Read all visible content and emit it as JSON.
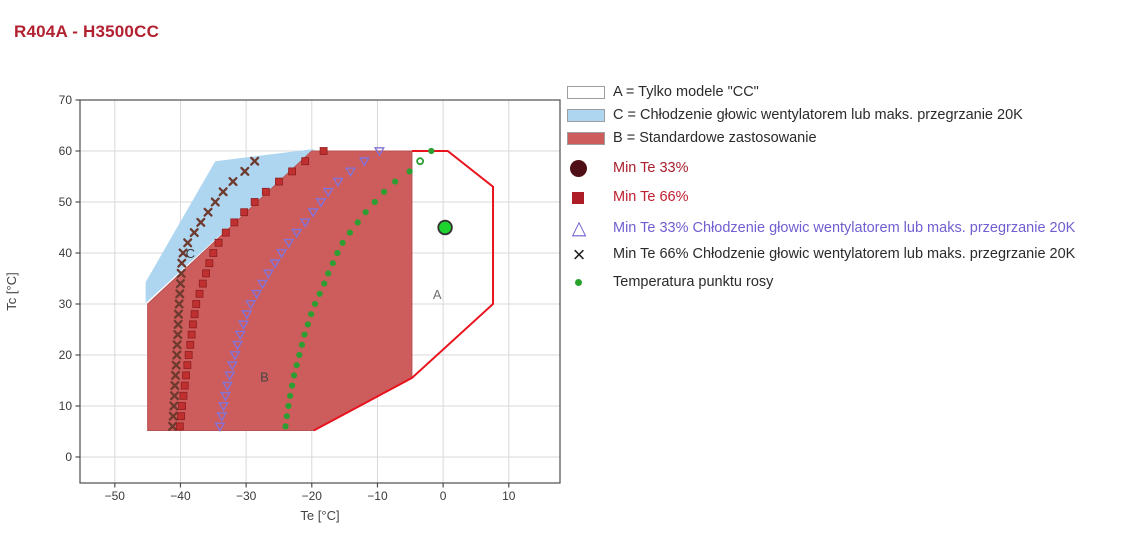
{
  "title": "R404A - H3500CC",
  "legend": {
    "items": [
      {
        "type": "box",
        "swatch_color": "#ffffff",
        "label": "A = Tylko modele \"CC\"",
        "label_color": "#2b2b2b"
      },
      {
        "type": "box",
        "swatch_color": "#aed6f1",
        "label": "C = Chłodzenie głowic wentylatorem lub maks. przegrzanie 20K",
        "label_color": "#2b2b2b"
      },
      {
        "type": "box",
        "swatch_color": "#cd5c5c",
        "label": "B = Standardowe zastosowanie",
        "label_color": "#2b2b2b"
      },
      {
        "type": "circle",
        "swatch_color": "#4e1016",
        "label": "Min Te 33%",
        "label_color": "#a8212e"
      },
      {
        "type": "square",
        "swatch_color": "#ad1d28",
        "label": "Min Te 66%",
        "label_color": "#bf2030"
      },
      {
        "type": "triangle",
        "swatch_color": "#6f5fd0",
        "label": "Min Te 33% Chłodzenie głowic wentylatorem lub maks. przegrzanie 20K",
        "label_color": "#6f5fd0"
      },
      {
        "type": "x",
        "swatch_color": "#222222",
        "label": "Min Te 66% Chłodzenie głowic wentylatorem lub maks. przegrzanie 20K",
        "label_color": "#2b2b2b"
      },
      {
        "type": "dot",
        "swatch_color": "#27a22b",
        "label": "Temperatura punktu rosy",
        "label_color": "#2b2b2b"
      }
    ]
  },
  "chart_data": {
    "type": "scatter",
    "title": "R404A - H3500CC",
    "xlabel": "Te [°C]",
    "ylabel": "Tc [°C]",
    "xlim": [
      -55.3,
      17.8
    ],
    "ylim": [
      -5.1,
      70
    ],
    "xticks": [
      -50,
      -40,
      -30,
      -20,
      -10,
      0,
      10
    ],
    "yticks": [
      0,
      10,
      20,
      30,
      40,
      50,
      60,
      70
    ],
    "grid": true,
    "legend_position": "right",
    "regions": [
      {
        "name": "C = Chłodzenie głowic wentylatorem lub maks. przegrzanie 20K",
        "fill": "#aed6f1",
        "points": [
          [
            -45.3,
            30.2
          ],
          [
            -45.3,
            34.3
          ],
          [
            -34.7,
            58
          ],
          [
            -19.6,
            60.4
          ]
        ]
      },
      {
        "name": "B = Standardowe zastosowanie",
        "fill": "#cd5c5c",
        "stroke": "#b95252",
        "points": [
          [
            -45,
            5.2
          ],
          [
            -45,
            30
          ],
          [
            -20,
            60
          ],
          [
            -4.75,
            60
          ],
          [
            -4.75,
            15.5
          ],
          [
            -19.7,
            5.2
          ]
        ]
      }
    ],
    "envelope_a_outline": {
      "name": "A = Tylko modele \"CC\"",
      "stroke": "#e8131d",
      "points": [
        [
          -4.75,
          60
        ],
        [
          0.7,
          60
        ],
        [
          7.6,
          53
        ],
        [
          7.6,
          30
        ],
        [
          -4.75,
          15.5
        ],
        [
          -19.7,
          5.2
        ]
      ]
    },
    "series": [
      {
        "name": "Min Te 66% Chłodzenie głowic wentylatorem lub maks. przegrzanie 20K",
        "marker": "x",
        "color": "#6e3a2e",
        "points": [
          [
            -41.2,
            6
          ],
          [
            -41.1,
            8
          ],
          [
            -41.0,
            10
          ],
          [
            -40.9,
            12
          ],
          [
            -40.85,
            14
          ],
          [
            -40.75,
            16
          ],
          [
            -40.65,
            18
          ],
          [
            -40.55,
            20
          ],
          [
            -40.5,
            22
          ],
          [
            -40.4,
            24
          ],
          [
            -40.35,
            26
          ],
          [
            -40.3,
            28
          ],
          [
            -40.2,
            30
          ],
          [
            -40.1,
            32
          ],
          [
            -40.0,
            34
          ],
          [
            -39.9,
            36
          ],
          [
            -39.8,
            38
          ],
          [
            -39.6,
            40
          ],
          [
            -38.9,
            42
          ],
          [
            -37.9,
            44
          ],
          [
            -36.9,
            46
          ],
          [
            -35.8,
            48
          ],
          [
            -34.7,
            50
          ],
          [
            -33.5,
            52
          ],
          [
            -32.0,
            54
          ],
          [
            -30.2,
            56
          ],
          [
            -28.7,
            58
          ]
        ]
      },
      {
        "name": "Min Te 66%",
        "marker": "square",
        "color": "#c13030",
        "points": [
          [
            -40.1,
            6
          ],
          [
            -39.9,
            8
          ],
          [
            -39.75,
            10
          ],
          [
            -39.55,
            12
          ],
          [
            -39.35,
            14
          ],
          [
            -39.15,
            16
          ],
          [
            -38.95,
            18
          ],
          [
            -38.75,
            20
          ],
          [
            -38.5,
            22
          ],
          [
            -38.3,
            24
          ],
          [
            -38.1,
            26
          ],
          [
            -37.85,
            28
          ],
          [
            -37.6,
            30
          ],
          [
            -37.1,
            32
          ],
          [
            -36.6,
            34
          ],
          [
            -36.1,
            36
          ],
          [
            -35.6,
            38
          ],
          [
            -35.0,
            40
          ],
          [
            -34.2,
            42
          ],
          [
            -33.1,
            44
          ],
          [
            -31.8,
            46
          ],
          [
            -30.3,
            48
          ],
          [
            -28.7,
            50
          ],
          [
            -27.0,
            52
          ],
          [
            -25.0,
            54
          ],
          [
            -23.0,
            56
          ],
          [
            -21.0,
            58
          ],
          [
            -18.2,
            60
          ]
        ]
      },
      {
        "name": "Min Te 33% Chłodzenie głowic wentylatorem lub maks. przegrzanie 20K",
        "marker": "triangle-down",
        "color": "#8274da",
        "points": [
          [
            -34.0,
            6
          ],
          [
            -33.7,
            8
          ],
          [
            -33.45,
            10
          ],
          [
            -33.15,
            12
          ],
          [
            -32.85,
            14
          ],
          [
            -32.5,
            16
          ],
          [
            -32.1,
            18
          ],
          [
            -31.7,
            20
          ],
          [
            -31.3,
            22
          ],
          [
            -30.9,
            24
          ],
          [
            -30.4,
            26
          ],
          [
            -29.9,
            28
          ],
          [
            -29.3,
            30
          ],
          [
            -28.4,
            32
          ],
          [
            -27.5,
            34
          ],
          [
            -26.6,
            36
          ],
          [
            -25.6,
            38
          ],
          [
            -24.6,
            40
          ],
          [
            -23.5,
            42
          ],
          [
            -22.3,
            44
          ],
          [
            -21.0,
            46
          ],
          [
            -19.8,
            48
          ],
          [
            -18.6,
            50
          ],
          [
            -17.5,
            52
          ],
          [
            -16.0,
            54
          ],
          [
            -14.1,
            56
          ],
          [
            -12.0,
            58
          ],
          [
            -9.7,
            60
          ]
        ]
      },
      {
        "name": "Temperatura punktu rosy",
        "marker": "dot",
        "color": "#2f9e32",
        "points": [
          [
            -24.0,
            6
          ],
          [
            -23.8,
            8
          ],
          [
            -23.55,
            10
          ],
          [
            -23.3,
            12
          ],
          [
            -23.0,
            14
          ],
          [
            -22.7,
            16
          ],
          [
            -22.3,
            18
          ],
          [
            -21.9,
            20
          ],
          [
            -21.5,
            22
          ],
          [
            -21.1,
            24
          ],
          [
            -20.6,
            26
          ],
          [
            -20.1,
            28
          ],
          [
            -19.5,
            30
          ],
          [
            -18.8,
            32
          ],
          [
            -18.1,
            34
          ],
          [
            -17.5,
            36
          ],
          [
            -16.8,
            38
          ],
          [
            -16.1,
            40
          ],
          [
            -15.3,
            42
          ],
          [
            -14.2,
            44
          ],
          [
            -13.0,
            46
          ],
          [
            -11.8,
            48
          ],
          [
            -10.4,
            50
          ],
          [
            -9.0,
            52
          ],
          [
            -7.3,
            54
          ],
          [
            -5.1,
            56
          ],
          [
            -1.8,
            60
          ]
        ]
      }
    ],
    "special_points": [
      {
        "desc": "dew-point-ring",
        "marker": "ring",
        "color": "#2f9e32",
        "x": -3.5,
        "y": 58
      },
      {
        "desc": "rating-point",
        "marker": "big-dot",
        "fill": "#1fd32f",
        "stroke": "#333333",
        "x": 0.3,
        "y": 45
      }
    ],
    "region_labels": [
      {
        "text": "C",
        "x": -38.5,
        "y": 39.8,
        "color": "#3c3c3c"
      },
      {
        "text": "B",
        "x": -27.2,
        "y": 15.6,
        "color": "#454545"
      },
      {
        "text": "A",
        "x": -0.9,
        "y": 31.8,
        "color": "#707070"
      }
    ]
  }
}
